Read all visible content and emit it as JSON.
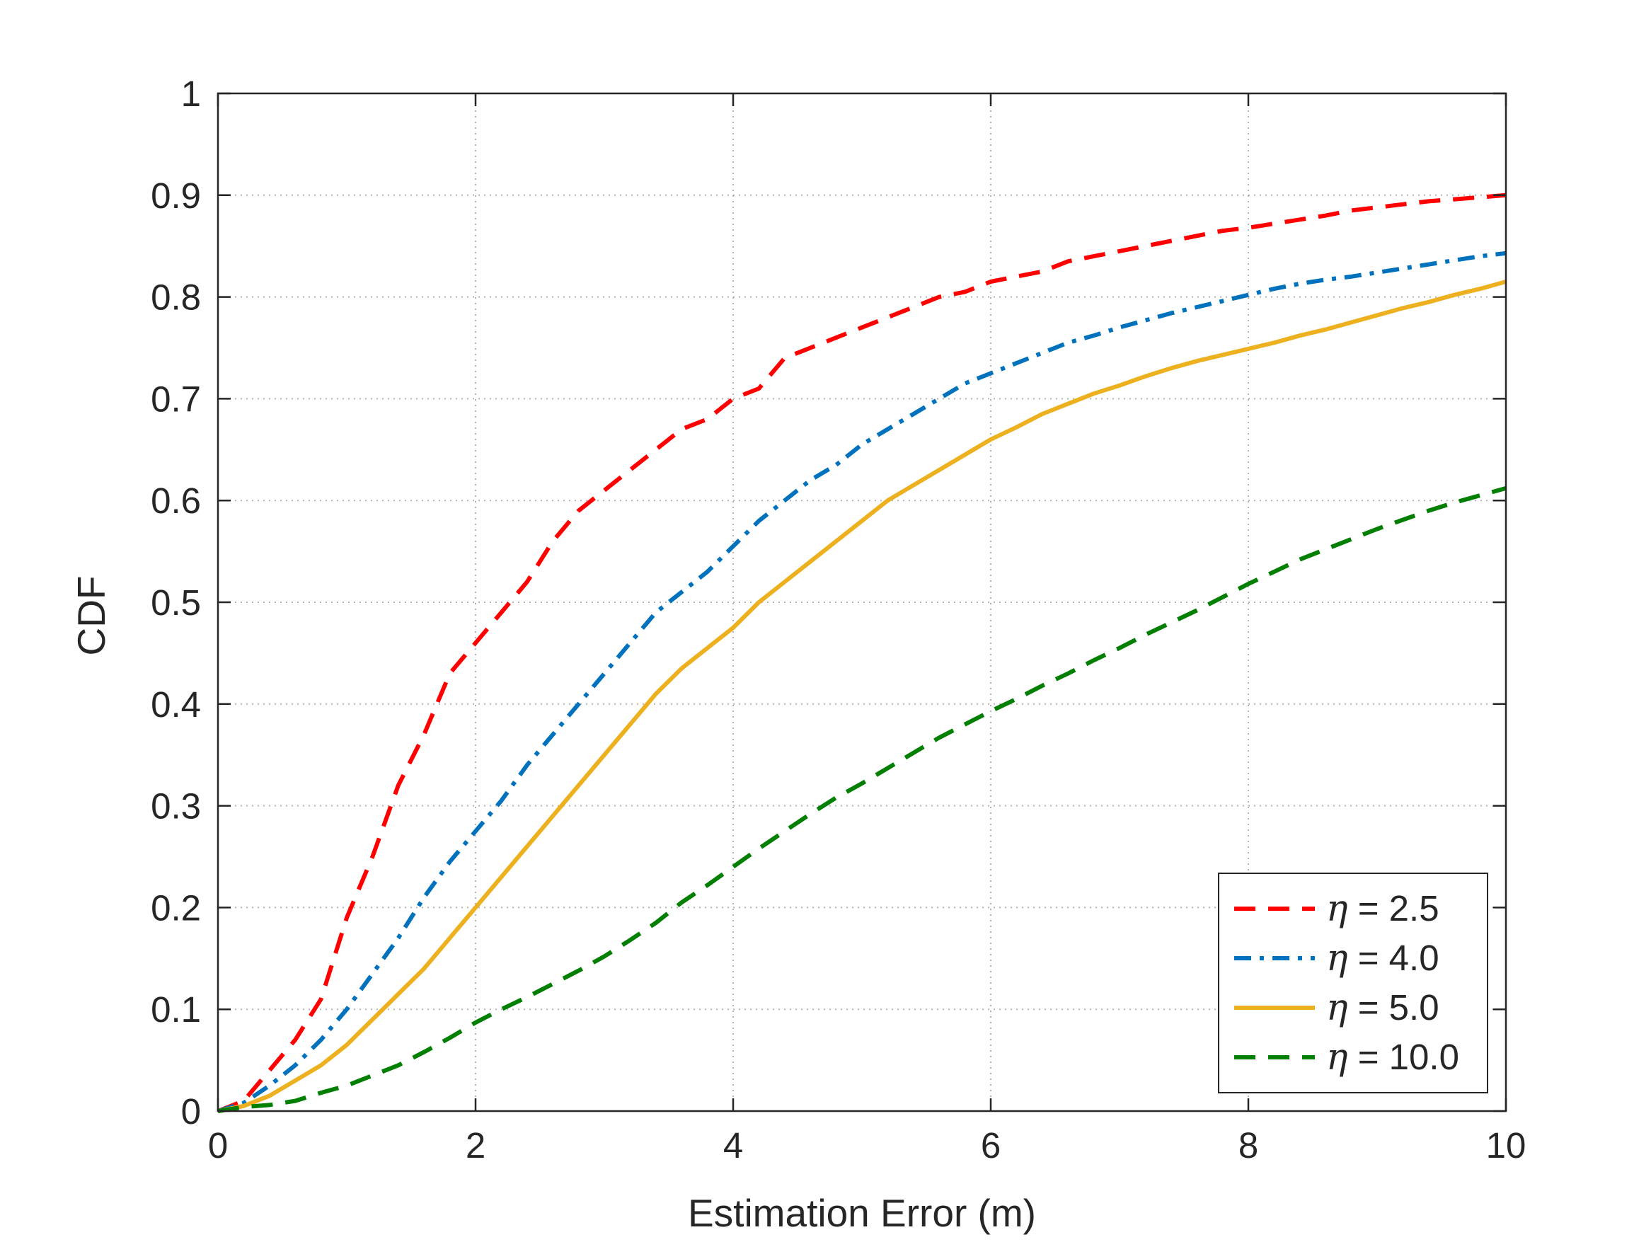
{
  "colors": {
    "background": "#ffffff",
    "axis": "#262626",
    "grid": "#b3b3b3"
  },
  "chart_data": {
    "type": "line",
    "title": "",
    "xlabel": "Estimation Error (m)",
    "ylabel": "CDF",
    "xlim": [
      0,
      10
    ],
    "ylim": [
      0,
      1
    ],
    "xticks": [
      0,
      2,
      4,
      6,
      8,
      10
    ],
    "xtick_labels": [
      "0",
      "2",
      "4",
      "6",
      "8",
      "10"
    ],
    "yticks": [
      0,
      0.1,
      0.2,
      0.3,
      0.4,
      0.5,
      0.6,
      0.7,
      0.8,
      0.9,
      1
    ],
    "ytick_labels": [
      "0",
      "0.1",
      "0.2",
      "0.3",
      "0.4",
      "0.5",
      "0.6",
      "0.7",
      "0.8",
      "0.9",
      "1"
    ],
    "grid": true,
    "legend_position": "bottom-right",
    "series": [
      {
        "name": "η = 2.5",
        "legend_symbol": "η",
        "legend_value": "= 2.5",
        "color": "#ff0000",
        "style": "dashed",
        "x": [
          0,
          0.2,
          0.4,
          0.6,
          0.8,
          1.0,
          1.2,
          1.4,
          1.6,
          1.8,
          2.0,
          2.2,
          2.4,
          2.6,
          2.8,
          3.0,
          3.2,
          3.4,
          3.6,
          3.8,
          4.0,
          4.2,
          4.4,
          4.6,
          4.8,
          5.0,
          5.2,
          5.4,
          5.6,
          5.8,
          6.0,
          6.2,
          6.4,
          6.6,
          6.8,
          7.0,
          7.2,
          7.4,
          7.6,
          7.8,
          8.0,
          8.2,
          8.4,
          8.6,
          8.8,
          9.0,
          9.2,
          9.4,
          9.6,
          9.8,
          10.0
        ],
        "y": [
          0,
          0.01,
          0.04,
          0.07,
          0.11,
          0.19,
          0.25,
          0.32,
          0.37,
          0.43,
          0.46,
          0.49,
          0.52,
          0.56,
          0.59,
          0.61,
          0.63,
          0.65,
          0.67,
          0.68,
          0.7,
          0.71,
          0.74,
          0.75,
          0.76,
          0.77,
          0.78,
          0.79,
          0.8,
          0.805,
          0.815,
          0.82,
          0.825,
          0.835,
          0.84,
          0.845,
          0.85,
          0.855,
          0.86,
          0.865,
          0.868,
          0.872,
          0.876,
          0.88,
          0.885,
          0.888,
          0.891,
          0.894,
          0.896,
          0.898,
          0.9
        ]
      },
      {
        "name": "η = 4.0",
        "legend_symbol": "η",
        "legend_value": "= 4.0",
        "color": "#0072bd",
        "style": "dashdot",
        "x": [
          0,
          0.2,
          0.4,
          0.6,
          0.8,
          1.0,
          1.2,
          1.4,
          1.6,
          1.8,
          2.0,
          2.2,
          2.4,
          2.6,
          2.8,
          3.0,
          3.2,
          3.4,
          3.6,
          3.8,
          4.0,
          4.2,
          4.4,
          4.6,
          4.8,
          5.0,
          5.2,
          5.4,
          5.6,
          5.8,
          6.0,
          6.2,
          6.4,
          6.6,
          6.8,
          7.0,
          7.2,
          7.4,
          7.6,
          7.8,
          8.0,
          8.2,
          8.4,
          8.6,
          8.8,
          9.0,
          9.2,
          9.4,
          9.6,
          9.8,
          10.0
        ],
        "y": [
          0,
          0.008,
          0.025,
          0.045,
          0.07,
          0.1,
          0.135,
          0.17,
          0.21,
          0.245,
          0.275,
          0.305,
          0.34,
          0.37,
          0.4,
          0.43,
          0.46,
          0.49,
          0.51,
          0.53,
          0.555,
          0.58,
          0.6,
          0.62,
          0.635,
          0.655,
          0.67,
          0.685,
          0.7,
          0.715,
          0.725,
          0.735,
          0.745,
          0.755,
          0.762,
          0.77,
          0.777,
          0.784,
          0.79,
          0.796,
          0.802,
          0.808,
          0.813,
          0.817,
          0.82,
          0.824,
          0.828,
          0.832,
          0.836,
          0.84,
          0.843
        ]
      },
      {
        "name": "η = 5.0",
        "legend_symbol": "η",
        "legend_value": "= 5.0",
        "color": "#edb120",
        "style": "solid",
        "x": [
          0,
          0.2,
          0.4,
          0.6,
          0.8,
          1.0,
          1.2,
          1.4,
          1.6,
          1.8,
          2.0,
          2.2,
          2.4,
          2.6,
          2.8,
          3.0,
          3.2,
          3.4,
          3.6,
          3.8,
          4.0,
          4.2,
          4.4,
          4.6,
          4.8,
          5.0,
          5.2,
          5.4,
          5.6,
          5.8,
          6.0,
          6.2,
          6.4,
          6.6,
          6.8,
          7.0,
          7.2,
          7.4,
          7.6,
          7.8,
          8.0,
          8.2,
          8.4,
          8.6,
          8.8,
          9.0,
          9.2,
          9.4,
          9.6,
          9.8,
          10.0
        ],
        "y": [
          0,
          0.005,
          0.015,
          0.03,
          0.045,
          0.065,
          0.09,
          0.115,
          0.14,
          0.17,
          0.2,
          0.23,
          0.26,
          0.29,
          0.32,
          0.35,
          0.38,
          0.41,
          0.435,
          0.455,
          0.475,
          0.5,
          0.52,
          0.54,
          0.56,
          0.58,
          0.6,
          0.615,
          0.63,
          0.645,
          0.66,
          0.672,
          0.685,
          0.695,
          0.705,
          0.713,
          0.722,
          0.73,
          0.737,
          0.743,
          0.749,
          0.755,
          0.762,
          0.768,
          0.775,
          0.782,
          0.789,
          0.795,
          0.802,
          0.808,
          0.815
        ]
      },
      {
        "name": "η = 10.0",
        "legend_symbol": "η",
        "legend_value": "= 10.0",
        "color": "#007f00",
        "style": "dashed",
        "x": [
          0,
          0.2,
          0.4,
          0.6,
          0.8,
          1.0,
          1.2,
          1.4,
          1.6,
          1.8,
          2.0,
          2.2,
          2.4,
          2.6,
          2.8,
          3.0,
          3.2,
          3.4,
          3.6,
          3.8,
          4.0,
          4.2,
          4.4,
          4.6,
          4.8,
          5.0,
          5.2,
          5.4,
          5.6,
          5.8,
          6.0,
          6.2,
          6.4,
          6.6,
          6.8,
          7.0,
          7.2,
          7.4,
          7.6,
          7.8,
          8.0,
          8.2,
          8.4,
          8.6,
          8.8,
          9.0,
          9.2,
          9.4,
          9.6,
          9.8,
          10.0
        ],
        "y": [
          0,
          0.004,
          0.006,
          0.01,
          0.018,
          0.025,
          0.035,
          0.045,
          0.058,
          0.072,
          0.087,
          0.1,
          0.112,
          0.125,
          0.138,
          0.152,
          0.168,
          0.185,
          0.205,
          0.222,
          0.24,
          0.258,
          0.275,
          0.292,
          0.308,
          0.322,
          0.337,
          0.352,
          0.367,
          0.38,
          0.393,
          0.405,
          0.418,
          0.43,
          0.443,
          0.455,
          0.468,
          0.48,
          0.492,
          0.505,
          0.518,
          0.53,
          0.542,
          0.552,
          0.562,
          0.572,
          0.581,
          0.59,
          0.598,
          0.605,
          0.612
        ]
      }
    ]
  }
}
